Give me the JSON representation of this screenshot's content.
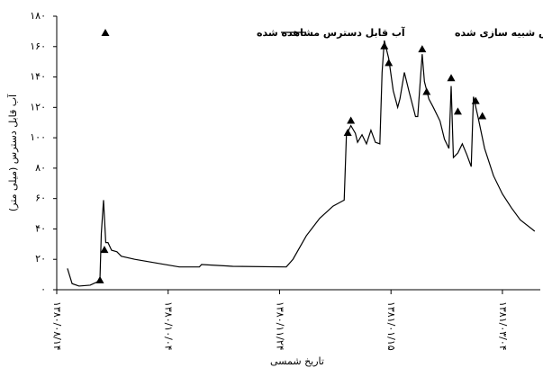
{
  "chart_data": {
    "type": "line",
    "y_label": "آب قابل دسترس (میلی متر)",
    "x_label": "تاریخ شمسی",
    "xlim": [
      0,
      217
    ],
    "xticks": [
      {
        "value": 0,
        "label": "۱۳۸۰/۰۸/۱۴"
      },
      {
        "value": 50,
        "label": "۱۳۸۰/۱۰/۰۴"
      },
      {
        "value": 100,
        "label": "۱۳۸۰/۱۱/۲۴"
      },
      {
        "value": 150,
        "label": "۱۳۸۱/۰۱/۱۵"
      },
      {
        "value": 200,
        "label": "۱۳۸۱/۰۳/۰۴"
      }
    ],
    "ylim": [
      0,
      180
    ],
    "yticks": [
      {
        "value": 0,
        "label": "۰"
      },
      {
        "value": 20,
        "label": "۲۰"
      },
      {
        "value": 40,
        "label": "۴۰"
      },
      {
        "value": 60,
        "label": "۶۰"
      },
      {
        "value": 80,
        "label": "۸۰"
      },
      {
        "value": 100,
        "label": "۱۰۰"
      },
      {
        "value": 120,
        "label": "۱۲۰"
      },
      {
        "value": 140,
        "label": "۱۴۰"
      },
      {
        "value": 160,
        "label": "۱۶۰"
      },
      {
        "value": 180,
        "label": "۱۸۰"
      }
    ],
    "grid": false,
    "series": [
      {
        "name": "آب قابل دسترس شبیه سازی شده",
        "color": "#000000",
        "style": "line",
        "x": [
          4.8,
          6.9,
          10,
          15,
          18,
          19.4,
          20,
          21,
          22,
          23,
          24.6,
          27,
          29,
          35,
          47,
          55,
          64,
          65,
          79,
          103,
          106,
          112,
          118,
          124,
          129,
          130,
          132,
          134,
          135,
          137,
          139,
          141,
          143,
          145,
          146,
          147,
          149,
          151,
          153,
          154,
          156,
          158,
          161,
          162,
          164,
          165,
          167,
          169,
          172,
          174,
          176,
          177,
          178,
          180,
          182,
          184,
          186,
          187,
          189,
          192,
          196,
          200,
          204,
          208,
          214.5
        ],
        "values": [
          14,
          4,
          2.4,
          3,
          5,
          7,
          37,
          59,
          31,
          31,
          26,
          25,
          22,
          20,
          17,
          15,
          15,
          16.6,
          15.4,
          15,
          20,
          35.5,
          47,
          55,
          59,
          102,
          108,
          103,
          97,
          102,
          96,
          105,
          97,
          96,
          143,
          164,
          152,
          131,
          120,
          125.5,
          143,
          131,
          114,
          114,
          155,
          137,
          125.5,
          120,
          111,
          99,
          93,
          134,
          87,
          90,
          96,
          89,
          81,
          127,
          114,
          93,
          75,
          63,
          54,
          46,
          38.5
        ]
      },
      {
        "name": "آب قابل دسترس مشاهده شده",
        "color": "#000000",
        "style": "triangle",
        "x": [
          19.4,
          21.4,
          130.6,
          132,
          147,
          149,
          164,
          166,
          177,
          180,
          188,
          191
        ],
        "values": [
          6,
          26,
          103,
          111,
          160,
          149,
          158,
          130,
          139,
          117,
          124,
          114
        ]
      }
    ]
  }
}
